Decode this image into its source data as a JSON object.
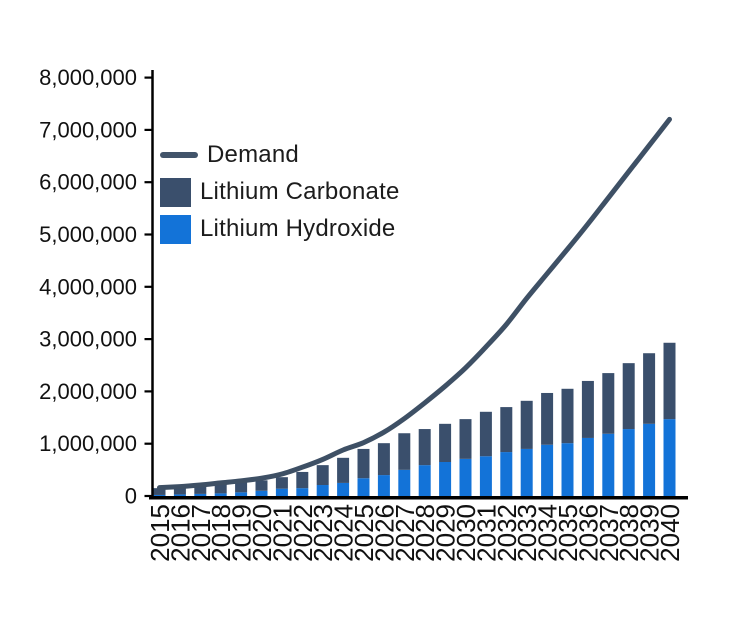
{
  "chart_data": {
    "type": "bar",
    "stacked": true,
    "title": "",
    "xlabel": "",
    "ylabel": "",
    "categories": [
      "2015",
      "2016",
      "2017",
      "2018",
      "2019",
      "2020",
      "2021",
      "2022",
      "2023",
      "2024",
      "2025",
      "2026",
      "2027",
      "2028",
      "2029",
      "2030",
      "2031",
      "2032",
      "2033",
      "2034",
      "2035",
      "2036",
      "2037",
      "2038",
      "2039",
      "2040"
    ],
    "series": [
      {
        "name": "Lithium Hydroxide",
        "kind": "bar",
        "color": "#1373d8",
        "values": [
          20000,
          30000,
          40000,
          50000,
          70000,
          100000,
          140000,
          150000,
          210000,
          250000,
          340000,
          400000,
          500000,
          590000,
          650000,
          710000,
          760000,
          840000,
          900000,
          980000,
          1010000,
          1110000,
          1190000,
          1280000,
          1380000,
          1470000
        ]
      },
      {
        "name": "Lithium Carbonate",
        "kind": "bar",
        "color": "#3a4f6c",
        "values": [
          130000,
          140000,
          160000,
          180000,
          190000,
          200000,
          220000,
          310000,
          380000,
          480000,
          560000,
          610000,
          700000,
          690000,
          730000,
          760000,
          850000,
          860000,
          920000,
          990000,
          1040000,
          1090000,
          1160000,
          1260000,
          1350000,
          1460000
        ]
      },
      {
        "name": "Demand",
        "kind": "line",
        "color": "#3e5065",
        "values": [
          160000,
          180000,
          210000,
          250000,
          290000,
          340000,
          420000,
          550000,
          700000,
          880000,
          1020000,
          1220000,
          1480000,
          1780000,
          2100000,
          2450000,
          2850000,
          3280000,
          3780000,
          4250000,
          4720000,
          5200000,
          5700000,
          6200000,
          6700000,
          7200000
        ]
      }
    ],
    "ylim": [
      0,
      8000000
    ],
    "ytick_step": 1000000,
    "y_tick_labels": [
      "0",
      "1,000,000",
      "2,000,000",
      "3,000,000",
      "4,000,000",
      "5,000,000",
      "6,000,000",
      "7,000,000",
      "8,000,000"
    ],
    "grid": false,
    "legend_position": "upper-left-inside",
    "axis_color": "#000000",
    "tick_label_color": "#111111"
  }
}
